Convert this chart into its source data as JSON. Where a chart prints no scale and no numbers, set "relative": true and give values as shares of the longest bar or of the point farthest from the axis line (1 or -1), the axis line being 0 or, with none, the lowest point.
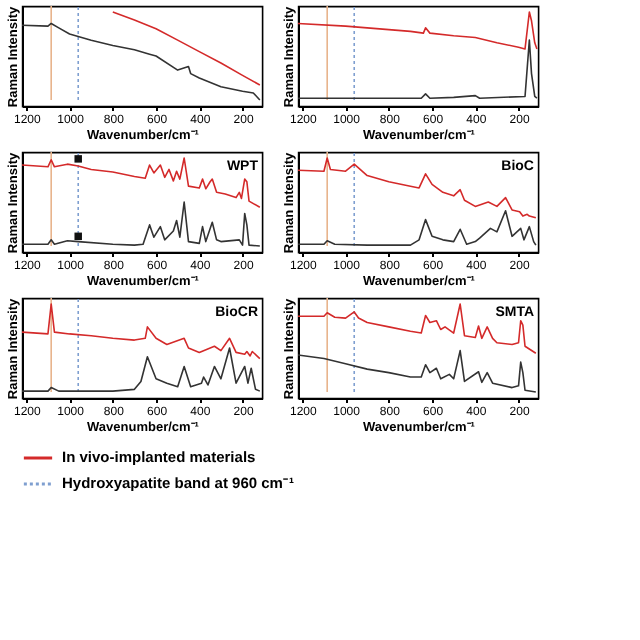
{
  "chart_data": [
    {
      "type": "line",
      "relative": true,
      "xlabel": "Wavenumber/cm⁻¹",
      "ylabel": "Raman Intensity",
      "xlim": [
        1220,
        110
      ],
      "xticks": [
        1200,
        1000,
        800,
        600,
        400,
        200
      ],
      "grid": false,
      "legend": "bottom",
      "ref_lines": [
        {
          "axis": "x",
          "value": 1085,
          "color": "#e8b48c"
        },
        {
          "axis": "x",
          "value": 960,
          "color": "#7f9fd0",
          "line_style": "dotted",
          "label": "Hydroxyapatite band at 960 cm⁻¹"
        }
      ],
      "series": [
        {
          "name": "In vivo-implanted materials",
          "color": "#d42a2a",
          "x": [
            800,
            700,
            600,
            500,
            400,
            300,
            200,
            120
          ],
          "values": [
            1.0,
            0.91,
            0.81,
            0.68,
            0.55,
            0.42,
            0.28,
            0.17
          ]
        },
        {
          "color": "#333333",
          "x": [
            1220,
            1100,
            1085,
            1050,
            1000,
            900,
            800,
            700,
            630,
            600,
            500,
            450,
            440,
            400,
            300,
            200,
            150,
            120
          ],
          "values": [
            0.85,
            0.84,
            0.87,
            0.82,
            0.75,
            0.68,
            0.62,
            0.57,
            0.52,
            0.5,
            0.34,
            0.38,
            0.3,
            0.25,
            0.15,
            0.1,
            0.08,
            0.0
          ]
        }
      ]
    },
    {
      "type": "line",
      "relative": true,
      "xlabel": "Wavenumber/cm⁻¹",
      "ylabel": "Raman Intensity",
      "xlim": [
        1220,
        110
      ],
      "xticks": [
        1200,
        1000,
        800,
        600,
        400,
        200
      ],
      "grid": false,
      "legend": "bottom",
      "ref_lines": [
        {
          "axis": "x",
          "value": 1085,
          "color": "#e8b48c"
        },
        {
          "axis": "x",
          "value": 960,
          "color": "#7f9fd0",
          "line_style": "dotted"
        }
      ],
      "series": [
        {
          "name": "In vivo-implanted materials",
          "color": "#d42a2a",
          "x": [
            1220,
            1000,
            800,
            700,
            640,
            630,
            610,
            500,
            400,
            300,
            200,
            170,
            150,
            140,
            125,
            115
          ],
          "values": [
            0.87,
            0.84,
            0.8,
            0.78,
            0.76,
            0.82,
            0.76,
            0.73,
            0.71,
            0.65,
            0.6,
            0.58,
            1.0,
            0.9,
            0.65,
            0.58
          ]
        },
        {
          "color": "#333333",
          "x": [
            1220,
            1000,
            800,
            650,
            630,
            610,
            500,
            400,
            380,
            170,
            150,
            140,
            125,
            115
          ],
          "values": [
            0.02,
            0.02,
            0.02,
            0.02,
            0.07,
            0.02,
            0.03,
            0.05,
            0.02,
            0.04,
            0.68,
            0.3,
            0.04,
            0.02
          ]
        }
      ]
    },
    {
      "type": "line",
      "relative": true,
      "title": "WPT",
      "xlabel": "Wavenumber/cm⁻¹",
      "ylabel": "Raman Intensity",
      "xlim": [
        1220,
        110
      ],
      "xticks": [
        1200,
        1000,
        800,
        600,
        400,
        200
      ],
      "grid": false,
      "legend": "bottom",
      "ref_lines": [
        {
          "axis": "x",
          "value": 1085,
          "color": "#e8b48c"
        },
        {
          "axis": "x",
          "value": 960,
          "color": "#7f9fd0",
          "line_style": "dotted"
        }
      ],
      "series": [
        {
          "type": "scatter",
          "marker": "square",
          "color": "#111111",
          "x": [
            960,
            960
          ],
          "values": [
            0.99,
            0.11
          ]
        },
        {
          "name": "In vivo-implanted materials",
          "color": "#d42a2a",
          "x": [
            1220,
            1100,
            1085,
            1070,
            1010,
            960,
            900,
            800,
            700,
            650,
            630,
            610,
            580,
            560,
            540,
            520,
            505,
            490,
            470,
            450,
            400,
            385,
            370,
            350,
            340,
            320,
            280,
            230,
            215,
            205,
            190,
            180,
            170,
            120
          ],
          "values": [
            0.92,
            0.9,
            0.98,
            0.9,
            0.93,
            0.91,
            0.87,
            0.84,
            0.79,
            0.77,
            0.92,
            0.83,
            0.92,
            0.78,
            0.87,
            0.74,
            0.85,
            0.76,
            1.0,
            0.68,
            0.66,
            0.76,
            0.65,
            0.73,
            0.76,
            0.61,
            0.59,
            0.55,
            0.61,
            0.54,
            0.76,
            0.73,
            0.51,
            0.44
          ]
        },
        {
          "color": "#333333",
          "x": [
            1220,
            1100,
            1085,
            1070,
            1010,
            960,
            800,
            700,
            660,
            630,
            610,
            580,
            560,
            520,
            505,
            490,
            470,
            450,
            400,
            385,
            370,
            340,
            320,
            300,
            215,
            200,
            190,
            180,
            170,
            120
          ],
          "values": [
            0.02,
            0.02,
            0.07,
            0.02,
            0.06,
            0.05,
            0.02,
            0.01,
            0.02,
            0.24,
            0.1,
            0.22,
            0.07,
            0.17,
            0.29,
            0.1,
            0.5,
            0.05,
            0.03,
            0.22,
            0.05,
            0.27,
            0.07,
            0.05,
            0.07,
            0.01,
            0.37,
            0.24,
            0.01,
            0.0
          ]
        }
      ]
    },
    {
      "type": "line",
      "relative": true,
      "title": "BioC",
      "xlabel": "Wavenumber/cm⁻¹",
      "ylabel": "Raman Intensity",
      "xlim": [
        1220,
        110
      ],
      "xticks": [
        1200,
        1000,
        800,
        600,
        400,
        200
      ],
      "grid": false,
      "legend": "bottom",
      "ref_lines": [
        {
          "axis": "x",
          "value": 1085,
          "color": "#e8b48c"
        },
        {
          "axis": "x",
          "value": 960,
          "color": "#7f9fd0",
          "line_style": "dotted"
        }
      ],
      "series": [
        {
          "name": "In vivo-implanted materials",
          "color": "#d42a2a",
          "x": [
            1220,
            1100,
            1085,
            1070,
            1000,
            960,
            900,
            800,
            700,
            660,
            630,
            600,
            550,
            500,
            470,
            450,
            400,
            340,
            300,
            260,
            230,
            195,
            180,
            160,
            150,
            120
          ],
          "values": [
            0.86,
            0.85,
            1.0,
            0.87,
            0.85,
            0.93,
            0.8,
            0.73,
            0.68,
            0.66,
            0.82,
            0.7,
            0.61,
            0.57,
            0.64,
            0.52,
            0.45,
            0.5,
            0.45,
            0.55,
            0.41,
            0.39,
            0.34,
            0.36,
            0.34,
            0.32
          ]
        },
        {
          "color": "#333333",
          "x": [
            1220,
            1100,
            1085,
            1050,
            900,
            700,
            660,
            630,
            600,
            550,
            500,
            470,
            440,
            400,
            380,
            330,
            300,
            260,
            230,
            190,
            175,
            150,
            130,
            120
          ],
          "values": [
            0.02,
            0.02,
            0.06,
            0.02,
            0.01,
            0.01,
            0.07,
            0.3,
            0.11,
            0.07,
            0.05,
            0.19,
            0.02,
            0.05,
            0.09,
            0.2,
            0.16,
            0.4,
            0.11,
            0.2,
            0.07,
            0.22,
            0.05,
            0.01
          ]
        }
      ]
    },
    {
      "type": "line",
      "relative": true,
      "title": "BioCR",
      "xlabel": "Wavenumber/cm⁻¹",
      "ylabel": "Raman Intensity",
      "xlim": [
        1220,
        110
      ],
      "xticks": [
        1200,
        1000,
        800,
        600,
        400,
        200
      ],
      "grid": false,
      "legend": "bottom",
      "ref_lines": [
        {
          "axis": "x",
          "value": 1085,
          "color": "#e8b48c"
        },
        {
          "axis": "x",
          "value": 960,
          "color": "#7f9fd0",
          "line_style": "dotted"
        }
      ],
      "series": [
        {
          "name": "In vivo-implanted materials",
          "color": "#d42a2a",
          "x": [
            1220,
            1100,
            1085,
            1070,
            1000,
            900,
            800,
            700,
            650,
            640,
            600,
            550,
            470,
            450,
            400,
            330,
            300,
            260,
            230,
            190,
            180,
            165,
            155,
            120
          ],
          "values": [
            0.68,
            0.66,
            1.0,
            0.68,
            0.66,
            0.64,
            0.61,
            0.59,
            0.61,
            0.74,
            0.61,
            0.54,
            0.61,
            0.5,
            0.45,
            0.52,
            0.47,
            0.61,
            0.45,
            0.43,
            0.46,
            0.41,
            0.46,
            0.38
          ]
        },
        {
          "color": "#333333",
          "x": [
            1220,
            1100,
            1085,
            1050,
            800,
            700,
            670,
            640,
            600,
            550,
            500,
            470,
            440,
            390,
            380,
            360,
            330,
            300,
            260,
            230,
            190,
            175,
            160,
            140,
            120
          ],
          "values": [
            0.01,
            0.01,
            0.05,
            0.01,
            0.01,
            0.03,
            0.12,
            0.4,
            0.15,
            0.1,
            0.06,
            0.29,
            0.06,
            0.1,
            0.17,
            0.08,
            0.29,
            0.15,
            0.5,
            0.1,
            0.29,
            0.1,
            0.27,
            0.03,
            0.01
          ]
        }
      ]
    },
    {
      "type": "line",
      "relative": true,
      "title": "SMTA",
      "xlabel": "Wavenumber/cm⁻¹",
      "ylabel": "Raman Intensity",
      "xlim": [
        1220,
        110
      ],
      "xticks": [
        1200,
        1000,
        800,
        600,
        400,
        200
      ],
      "grid": false,
      "legend": "bottom",
      "ref_lines": [
        {
          "axis": "x",
          "value": 1085,
          "color": "#e8b48c"
        },
        {
          "axis": "x",
          "value": 960,
          "color": "#7f9fd0",
          "line_style": "dotted"
        }
      ],
      "series": [
        {
          "name": "In vivo-implanted materials",
          "color": "#d42a2a",
          "x": [
            1220,
            1100,
            1085,
            1050,
            1000,
            960,
            940,
            900,
            800,
            700,
            650,
            630,
            610,
            580,
            560,
            540,
            500,
            470,
            450,
            400,
            385,
            370,
            345,
            320,
            300,
            230,
            200,
            190,
            180,
            170,
            120
          ],
          "values": [
            0.86,
            0.86,
            0.9,
            0.85,
            0.84,
            0.91,
            0.84,
            0.79,
            0.74,
            0.69,
            0.67,
            0.87,
            0.79,
            0.81,
            0.71,
            0.74,
            0.67,
            1.0,
            0.64,
            0.62,
            0.75,
            0.61,
            0.74,
            0.61,
            0.56,
            0.54,
            0.56,
            0.81,
            0.76,
            0.52,
            0.44
          ]
        },
        {
          "color": "#333333",
          "x": [
            1220,
            1100,
            1000,
            900,
            800,
            700,
            650,
            630,
            610,
            580,
            560,
            520,
            500,
            470,
            450,
            385,
            370,
            345,
            320,
            230,
            200,
            190,
            180,
            170,
            120
          ],
          "values": [
            0.42,
            0.38,
            0.32,
            0.26,
            0.22,
            0.17,
            0.17,
            0.31,
            0.22,
            0.27,
            0.15,
            0.2,
            0.15,
            0.47,
            0.12,
            0.23,
            0.11,
            0.22,
            0.1,
            0.05,
            0.07,
            0.34,
            0.22,
            0.02,
            0.0
          ]
        }
      ]
    }
  ]
}
